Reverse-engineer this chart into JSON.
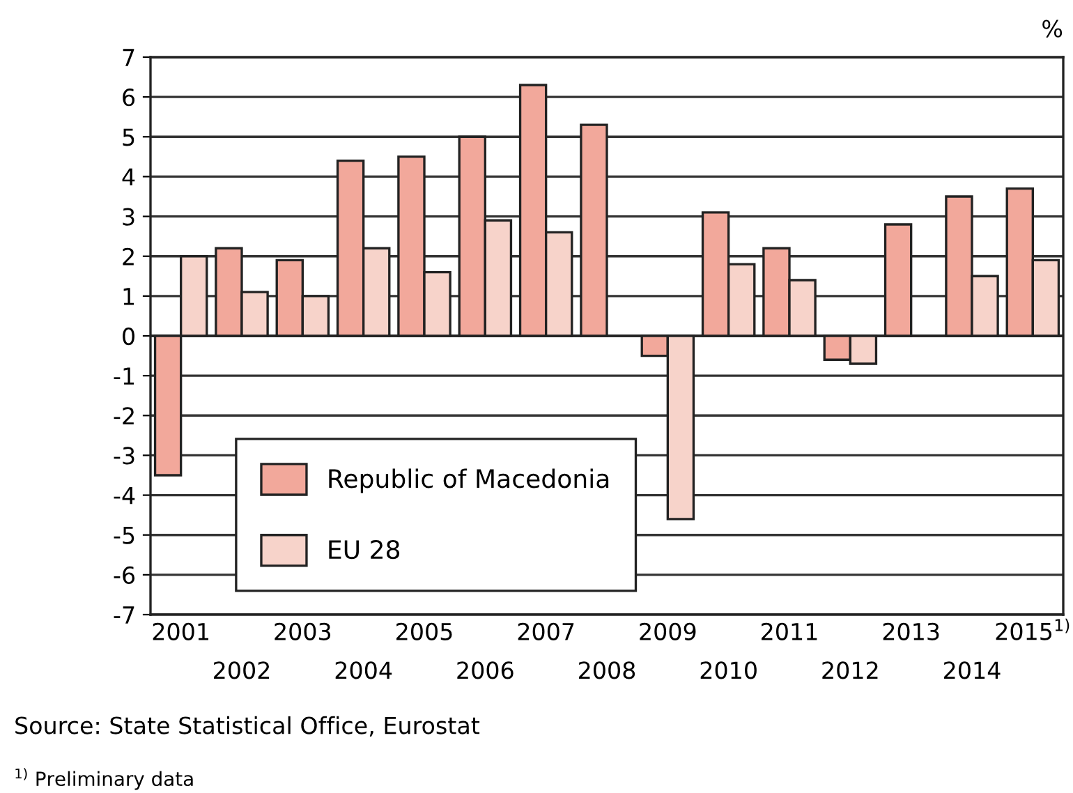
{
  "chart_data": {
    "type": "bar",
    "categories": [
      "2001",
      "2002",
      "2003",
      "2004",
      "2005",
      "2006",
      "2007",
      "2008",
      "2009",
      "2010",
      "2011",
      "2012",
      "2013",
      "2014",
      "2015$^{1)}$"
    ],
    "series": [
      {
        "name": "Republic of Macedonia",
        "color": "#f2a89b",
        "values": [
          -3.5,
          2.2,
          1.9,
          4.4,
          4.5,
          5.0,
          6.3,
          5.3,
          -0.5,
          3.1,
          2.2,
          -0.6,
          2.8,
          3.5,
          3.7
        ]
      },
      {
        "name": "EU 28",
        "color": "#f7d3ca",
        "values": [
          2.0,
          1.1,
          1.0,
          2.2,
          1.6,
          2.9,
          2.6,
          null,
          -4.6,
          1.8,
          1.4,
          -0.7,
          null,
          1.5,
          1.9
        ]
      }
    ],
    "ylabel": "%",
    "ylim": [
      -7,
      7
    ],
    "yticks": [
      -7,
      -6,
      -5,
      -4,
      -3,
      -2,
      -1,
      0,
      1,
      2,
      3,
      4,
      5,
      6,
      7
    ],
    "grid": "y",
    "legend": "bottom left",
    "annotations": [
      "Source: State Statistical Office, Eurostat",
      "$^{1)}$ Preliminary data"
    ]
  }
}
